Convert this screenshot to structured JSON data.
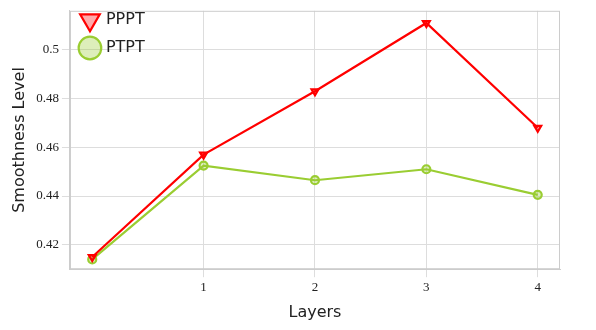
{
  "chart_data": {
    "type": "line",
    "x_label": "Layers",
    "y_label": "Smoothness Level",
    "x": [
      0,
      1,
      2,
      3,
      4
    ],
    "series": [
      {
        "name": "PPPT",
        "color": "#ff0000",
        "marker": "triangle_down",
        "values": [
          0.415,
          0.457,
          0.483,
          0.511,
          0.468
        ]
      },
      {
        "name": "PTPT",
        "color": "#9acd32",
        "marker": "pentagon",
        "values": [
          0.414,
          0.4525,
          0.4465,
          0.451,
          0.4405
        ]
      }
    ],
    "xlim": [
      -0.2,
      4.2
    ],
    "xticks": [
      1,
      2,
      3,
      4
    ],
    "ylim": [
      0.41,
      0.516
    ],
    "yticks": [
      0.42,
      0.44,
      0.46,
      0.48,
      0.5
    ],
    "grid": true,
    "legend": "upper left"
  }
}
